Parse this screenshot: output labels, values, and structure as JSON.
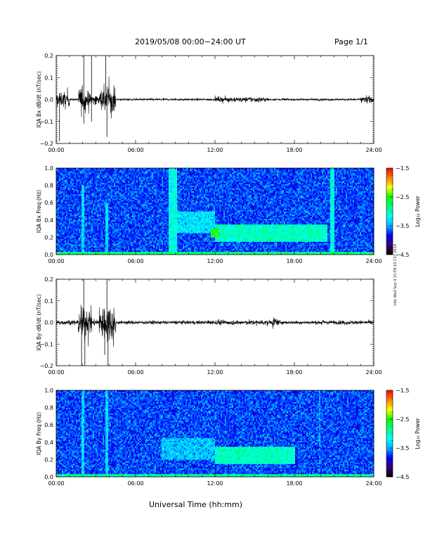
{
  "header": {
    "date_range": "2019/05/08  00:00−24:00 UT",
    "page": "Page 1/1"
  },
  "footer": {
    "x_axis_label": "Universal Time (hh:mm)",
    "side_note": "mbt Wed Sep 4 15:59:10 CST 2019"
  },
  "colors": {
    "trace": "#000000",
    "colormap": [
      "#000000",
      "#3a0070",
      "#0000ff",
      "#00b0ff",
      "#00ffff",
      "#00ff80",
      "#00ff00",
      "#ffff00",
      "#ff8000",
      "#ff0000"
    ]
  },
  "chart_data": [
    {
      "type": "line",
      "ylabel": "IQA Bx dB/dt (nT/sec)",
      "xlim": [
        "00:00",
        "24:00"
      ],
      "x_ticks": [
        "00:00",
        "06:00",
        "12:00",
        "18:00",
        "24:00"
      ],
      "ylim": [
        -0.2,
        0.2
      ],
      "y_ticks": [
        "0.2",
        "0.1",
        "0.0",
        "−0.1",
        "−0.2"
      ],
      "baseline_amplitude": 0.006,
      "activity": [
        {
          "start": "00:00",
          "end": "01:00",
          "amplitude": 0.06
        },
        {
          "start": "01:40",
          "end": "02:30",
          "amplitude": 0.1
        },
        {
          "start": "02:30",
          "end": "03:15",
          "amplitude": 0.04
        },
        {
          "start": "03:15",
          "end": "04:30",
          "amplitude": 0.12
        },
        {
          "start": "12:00",
          "end": "16:00",
          "amplitude": 0.02
        },
        {
          "start": "23:00",
          "end": "24:00",
          "amplitude": 0.03
        }
      ],
      "spikes": [
        {
          "x": "00:15",
          "y": -0.19
        },
        {
          "x": "02:05",
          "y": 0.2
        },
        {
          "x": "02:05",
          "y": -0.11
        },
        {
          "x": "02:40",
          "y": 0.2
        },
        {
          "x": "02:40",
          "y": -0.1
        },
        {
          "x": "03:45",
          "y": 0.2
        },
        {
          "x": "03:50",
          "y": -0.17
        }
      ]
    },
    {
      "type": "heatmap",
      "ylabel": "IQA Bx Freq (Hz)",
      "xlim": [
        "00:00",
        "24:00"
      ],
      "x_ticks": [
        "00:00",
        "06:00",
        "12:00",
        "18:00",
        "24:00"
      ],
      "ylim": [
        0.0,
        1.0
      ],
      "y_ticks": [
        "1.0",
        "0.8",
        "0.6",
        "0.4",
        "0.2",
        "0.0"
      ],
      "colorbar": {
        "label": "Log₁₀ Power",
        "range": [
          -4.5,
          -1.5
        ],
        "ticks": [
          "−1.5",
          "−2.5",
          "−3.5",
          "−4.5"
        ]
      },
      "background_level": -3.7,
      "features": [
        {
          "kind": "band",
          "t0": "08:30",
          "t1": "09:10",
          "f0": 0.0,
          "f1": 1.0,
          "level": -3.1
        },
        {
          "kind": "band",
          "t0": "20:45",
          "t1": "21:00",
          "f0": 0.0,
          "f1": 1.0,
          "level": -3.1
        },
        {
          "kind": "band",
          "t0": "01:55",
          "t1": "02:05",
          "f0": 0.0,
          "f1": 0.8,
          "level": -3.3
        },
        {
          "kind": "band",
          "t0": "03:40",
          "t1": "03:55",
          "f0": 0.0,
          "f1": 0.6,
          "level": -3.3
        },
        {
          "kind": "blob",
          "t0": "12:00",
          "t1": "20:30",
          "f0": 0.15,
          "f1": 0.35,
          "level": -3.0
        },
        {
          "kind": "blob",
          "t0": "09:00",
          "t1": "12:00",
          "f0": 0.25,
          "f1": 0.5,
          "level": -3.3
        },
        {
          "kind": "blob",
          "t0": "11:40",
          "t1": "12:20",
          "f0": 0.2,
          "f1": 0.3,
          "level": -2.5
        },
        {
          "kind": "low",
          "t0": "00:00",
          "t1": "24:00",
          "f0": 0.0,
          "f1": 0.04,
          "level": -2.8
        }
      ]
    },
    {
      "type": "line",
      "ylabel": "IQA By dB/dt (nT/sec)",
      "xlim": [
        "00:00",
        "24:00"
      ],
      "x_ticks": [
        "00:00",
        "06:00",
        "12:00",
        "18:00",
        "24:00"
      ],
      "ylim": [
        -0.2,
        0.2
      ],
      "y_ticks": [
        "0.2",
        "0.1",
        "0.0",
        "−0.1",
        "−0.2"
      ],
      "baseline_amplitude": 0.01,
      "activity": [
        {
          "start": "00:00",
          "end": "01:30",
          "amplitude": 0.02
        },
        {
          "start": "01:40",
          "end": "02:40",
          "amplitude": 0.12
        },
        {
          "start": "02:40",
          "end": "03:15",
          "amplitude": 0.03
        },
        {
          "start": "03:15",
          "end": "04:30",
          "amplitude": 0.14
        },
        {
          "start": "11:30",
          "end": "17:00",
          "amplitude": 0.02
        },
        {
          "start": "16:20",
          "end": "16:40",
          "amplitude": 0.05
        },
        {
          "start": "20:00",
          "end": "24:00",
          "amplitude": 0.015
        }
      ],
      "spikes": [
        {
          "x": "01:55",
          "y": -0.2
        },
        {
          "x": "02:05",
          "y": 0.2
        },
        {
          "x": "02:10",
          "y": -0.2
        },
        {
          "x": "03:50",
          "y": 0.2
        },
        {
          "x": "03:55",
          "y": -0.2
        },
        {
          "x": "03:40",
          "y": -0.15
        }
      ]
    },
    {
      "type": "heatmap",
      "ylabel": "IQA By Freq (Hz)",
      "xlim": [
        "00:00",
        "24:00"
      ],
      "x_ticks": [
        "00:00",
        "06:00",
        "12:00",
        "18:00",
        "24:00"
      ],
      "ylim": [
        0.0,
        1.0
      ],
      "y_ticks": [
        "1.0",
        "0.8",
        "0.6",
        "0.4",
        "0.2",
        "0.0"
      ],
      "colorbar": {
        "label": "Log₁₀ Power",
        "range": [
          -4.5,
          -1.5
        ],
        "ticks": [
          "−1.5",
          "−2.5",
          "−3.5",
          "−4.5"
        ]
      },
      "background_level": -3.7,
      "features": [
        {
          "kind": "band",
          "t0": "01:55",
          "t1": "02:05",
          "f0": 0.0,
          "f1": 1.0,
          "level": -3.3
        },
        {
          "kind": "band",
          "t0": "03:40",
          "t1": "03:55",
          "f0": 0.0,
          "f1": 1.0,
          "level": -3.3
        },
        {
          "kind": "band",
          "t0": "19:50",
          "t1": "20:00",
          "f0": 0.0,
          "f1": 1.0,
          "level": -3.5
        },
        {
          "kind": "blob",
          "t0": "12:00",
          "t1": "18:00",
          "f0": 0.15,
          "f1": 0.35,
          "level": -3.0
        },
        {
          "kind": "blob",
          "t0": "08:00",
          "t1": "12:00",
          "f0": 0.2,
          "f1": 0.45,
          "level": -3.4
        },
        {
          "kind": "low",
          "t0": "00:00",
          "t1": "24:00",
          "f0": 0.0,
          "f1": 0.04,
          "level": -2.9
        }
      ]
    }
  ]
}
